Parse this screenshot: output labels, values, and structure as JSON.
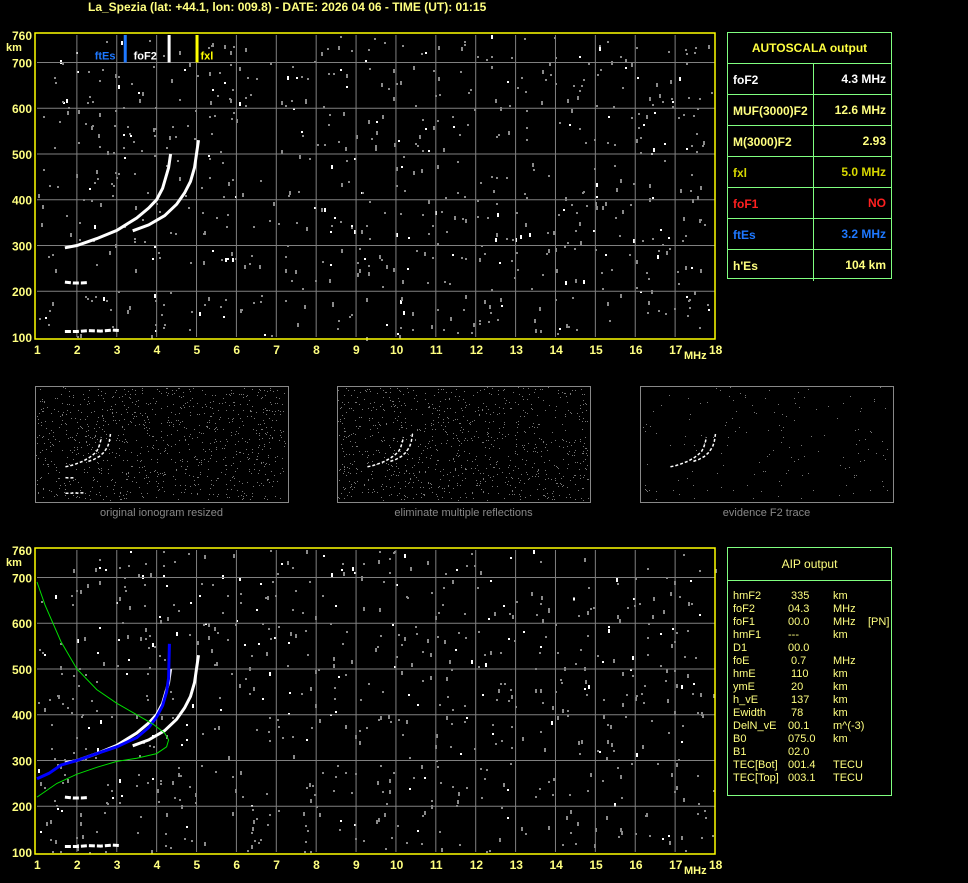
{
  "header": {
    "title": "La_Spezia (lat: +44.1, lon: 009.8) - DATE: 2026 04 06 - TIME (UT): 01:15"
  },
  "colors": {
    "axis": "#ffff00",
    "grid": "#808080",
    "trace": "#ffffff",
    "profile_blue": "#0000ff",
    "profile_green": "#00e000",
    "ftEs": "#1e78ff",
    "fxl": "#ffff00",
    "panel_border": "#80ff80"
  },
  "chart_data": [
    {
      "type": "scatter",
      "title": "",
      "xlabel": "MHz",
      "ylabel": "km",
      "xlim": [
        1,
        18
      ],
      "ylim": [
        100,
        760
      ],
      "x_ticks": [
        "1",
        "2",
        "3",
        "4",
        "5",
        "6",
        "7",
        "8",
        "9",
        "10",
        "11",
        "12",
        "13",
        "14",
        "15",
        "16",
        "17",
        "18"
      ],
      "y_ticks": [
        "100",
        "200",
        "300",
        "400",
        "500",
        "600",
        "700",
        "760"
      ],
      "grid": true,
      "series": [
        {
          "kind": "o-trace",
          "x": [
            1.7,
            2.0,
            2.5,
            3.0,
            3.5,
            3.8,
            4.0,
            4.15,
            4.3,
            4.35
          ],
          "y": [
            295,
            300,
            315,
            333,
            360,
            382,
            400,
            425,
            470,
            500
          ]
        },
        {
          "kind": "x-trace",
          "x": [
            3.4,
            3.8,
            4.2,
            4.5,
            4.7,
            4.85,
            4.95,
            5.05
          ],
          "y": [
            332,
            345,
            365,
            390,
            415,
            440,
            470,
            530
          ]
        },
        {
          "kind": "es-trace",
          "x": [
            1.7,
            2.0,
            2.3,
            2.6,
            2.9,
            3.1
          ],
          "y": [
            112,
            112,
            114,
            113,
            115,
            114
          ]
        },
        {
          "kind": "es-2nd",
          "x": [
            1.7,
            1.9,
            2.1,
            2.3
          ],
          "y": [
            220,
            218,
            218,
            219
          ]
        }
      ],
      "markers": [
        {
          "label": "ftEs",
          "freq": 3.2
        },
        {
          "label": "foF2",
          "freq": 4.3
        },
        {
          "label": "fxl",
          "freq": 5.0
        }
      ]
    },
    {
      "type": "scatter",
      "title": "",
      "xlabel": "MHz",
      "ylabel": "km",
      "xlim": [
        1,
        18
      ],
      "ylim": [
        100,
        760
      ],
      "x_ticks": [
        "1",
        "2",
        "3",
        "4",
        "5",
        "6",
        "7",
        "8",
        "9",
        "10",
        "11",
        "12",
        "13",
        "14",
        "15",
        "16",
        "17",
        "18"
      ],
      "y_ticks": [
        "100",
        "200",
        "300",
        "400",
        "500",
        "600",
        "700",
        "760"
      ],
      "grid": true,
      "series": [
        {
          "kind": "o-trace",
          "x": [
            1.7,
            2.0,
            2.5,
            3.0,
            3.5,
            3.8,
            4.0,
            4.15,
            4.3,
            4.35
          ],
          "y": [
            295,
            300,
            315,
            333,
            360,
            382,
            400,
            425,
            470,
            500
          ]
        },
        {
          "kind": "x-trace",
          "x": [
            3.4,
            3.8,
            4.2,
            4.5,
            4.7,
            4.85,
            4.95,
            5.05
          ],
          "y": [
            332,
            345,
            365,
            390,
            415,
            440,
            470,
            530
          ]
        },
        {
          "kind": "es-trace",
          "x": [
            1.7,
            2.0,
            2.3,
            2.6,
            2.9,
            3.1
          ],
          "y": [
            112,
            112,
            114,
            113,
            115,
            114
          ]
        },
        {
          "kind": "es-2nd",
          "x": [
            1.7,
            1.9,
            2.1,
            2.3
          ],
          "y": [
            220,
            218,
            218,
            219
          ]
        },
        {
          "kind": "blue-profile",
          "x": [
            1.0,
            1.3,
            1.6,
            2.0,
            2.5,
            3.0,
            3.5,
            3.8,
            4.0,
            4.15,
            4.25,
            4.3,
            4.32
          ],
          "y": [
            260,
            272,
            290,
            300,
            315,
            330,
            350,
            372,
            395,
            420,
            450,
            480,
            555
          ]
        },
        {
          "kind": "green-profile",
          "x": [
            1.0,
            1.2,
            1.6,
            2.0,
            2.5,
            3.0,
            3.5,
            3.9,
            4.2,
            4.3,
            4.25,
            4.0,
            3.5,
            3.0,
            2.5,
            2.0,
            1.5,
            1.0
          ],
          "y": [
            690,
            640,
            560,
            500,
            455,
            425,
            400,
            380,
            360,
            345,
            330,
            315,
            305,
            298,
            285,
            270,
            250,
            220
          ]
        }
      ],
      "markers": []
    }
  ],
  "thumbnails": [
    {
      "label": "original ionogram resized"
    },
    {
      "label": "eliminate multiple reflections"
    },
    {
      "label": "evidence F2 trace"
    }
  ],
  "autoscala": {
    "title": "AUTOSCALA output",
    "rows": [
      {
        "key": "foF2",
        "value": "4.3 MHz",
        "color": "#ffffff"
      },
      {
        "key": "MUF(3000)F2",
        "value": "12.6 MHz",
        "color": "#ffff80"
      },
      {
        "key": "M(3000)F2",
        "value": "2.93",
        "color": "#ffff80"
      },
      {
        "key": "fxl",
        "value": "5.0 MHz",
        "color": "#d8d800"
      },
      {
        "key": "foF1",
        "value": "NO",
        "color": "#ff2020"
      },
      {
        "key": "ftEs",
        "value": "3.2 MHz",
        "color": "#1e78ff"
      },
      {
        "key": "h'Es",
        "value": "104     km",
        "color": "#ffff80"
      }
    ]
  },
  "aip": {
    "title": "AIP output",
    "rows": [
      {
        "name": "hmF2",
        "value": "335",
        "unit": "km",
        "extra": ""
      },
      {
        "name": "foF2",
        "value": "04.3",
        "unit": "MHz",
        "extra": ""
      },
      {
        "name": "foF1",
        "value": "00.0",
        "unit": "MHz",
        "extra": "[PN]"
      },
      {
        "name": "hmF1",
        "value": "---",
        "unit": "km",
        "extra": ""
      },
      {
        "name": "D1",
        "value": "00.0",
        "unit": "",
        "extra": ""
      },
      {
        "name": "foE",
        "value": "0.7",
        "unit": "MHz",
        "extra": ""
      },
      {
        "name": "hmE",
        "value": "110",
        "unit": "km",
        "extra": ""
      },
      {
        "name": "ymE",
        "value": "20",
        "unit": "km",
        "extra": ""
      },
      {
        "name": "h_vE",
        "value": "137",
        "unit": "km",
        "extra": ""
      },
      {
        "name": "Ewidth",
        "value": "78",
        "unit": "km",
        "extra": ""
      },
      {
        "name": "DelN_vE",
        "value": "00.1",
        "unit": "m^(-3)",
        "extra": ""
      },
      {
        "name": "B0",
        "value": "075.0",
        "unit": "km",
        "extra": ""
      },
      {
        "name": "B1",
        "value": "02.0",
        "unit": "",
        "extra": ""
      },
      {
        "name": "TEC[Bot]",
        "value": "001.4",
        "unit": "TECU",
        "extra": ""
      },
      {
        "name": "TEC[Top]",
        "value": "003.1",
        "unit": "TECU",
        "extra": ""
      }
    ]
  }
}
